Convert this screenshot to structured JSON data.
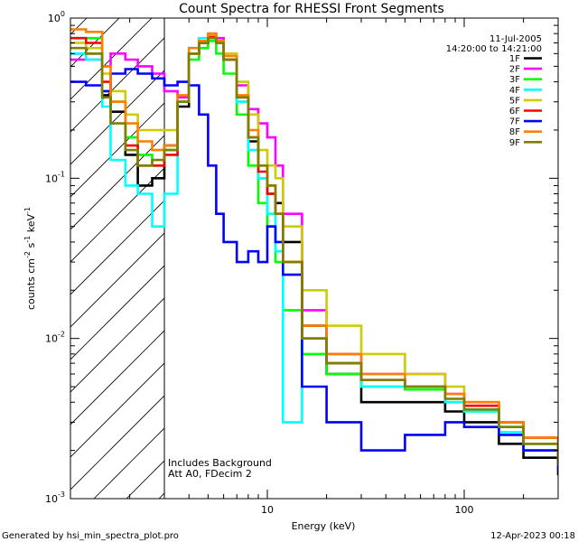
{
  "chart_data": {
    "type": "line",
    "title": "Count Spectra for RHESSI Front Segments",
    "xlabel": "Energy (keV)",
    "ylabel_parts": [
      "counts cm",
      "-2",
      " s",
      "-1",
      " keV",
      "-1"
    ],
    "xscale": "log",
    "yscale": "log",
    "xlim": [
      1,
      300
    ],
    "ylim": [
      0.001,
      1
    ],
    "x_ticks": [
      {
        "value": 10,
        "label": "10"
      },
      {
        "value": 100,
        "label": "100"
      }
    ],
    "y_ticks": [
      {
        "value": 1,
        "base": "10",
        "exp": "0"
      },
      {
        "value": 0.1,
        "base": "10",
        "exp": "-1"
      },
      {
        "value": 0.01,
        "base": "10",
        "exp": "-2"
      },
      {
        "value": 0.001,
        "base": "10",
        "exp": "-3"
      }
    ],
    "date": "11-Jul-2005",
    "time_range": "14:20:00 to 14:21:00",
    "legend_position": "top-right",
    "hatched_region_xmax": 3,
    "annotations": [
      "Includes Background",
      "Att A0, FDecim 2"
    ],
    "series": [
      {
        "name": "1F",
        "color": "#000000",
        "x": [
          1,
          1.2,
          1.45,
          1.6,
          1.9,
          2.2,
          2.6,
          3,
          3.5,
          4,
          4.5,
          5,
          5.5,
          6,
          7,
          8,
          9,
          10,
          11,
          12,
          15,
          20,
          30,
          50,
          80,
          100,
          150,
          200,
          300
        ],
        "y": [
          0.6,
          0.6,
          0.33,
          0.26,
          0.14,
          0.09,
          0.1,
          0.16,
          0.28,
          0.6,
          0.7,
          0.78,
          0.72,
          0.55,
          0.3,
          0.17,
          0.1,
          0.08,
          0.07,
          0.04,
          0.012,
          0.006,
          0.004,
          0.004,
          0.0035,
          0.003,
          0.0022,
          0.0018,
          0.0014
        ]
      },
      {
        "name": "2F",
        "color": "#ff00ff",
        "x": [
          1,
          1.2,
          1.45,
          1.6,
          1.9,
          2.2,
          2.6,
          3,
          3.5,
          4,
          4.5,
          5,
          5.5,
          6,
          7,
          8,
          9,
          10,
          11,
          12,
          15,
          20,
          30,
          50,
          80,
          100,
          150,
          200,
          300
        ],
        "y": [
          0.55,
          0.55,
          0.5,
          0.6,
          0.55,
          0.5,
          0.45,
          0.35,
          0.32,
          0.6,
          0.72,
          0.8,
          0.75,
          0.6,
          0.38,
          0.27,
          0.22,
          0.18,
          0.12,
          0.06,
          0.015,
          0.008,
          0.006,
          0.006,
          0.0045,
          0.0038,
          0.003,
          0.0022,
          0.0017
        ]
      },
      {
        "name": "3F",
        "color": "#00ff00",
        "x": [
          1,
          1.2,
          1.45,
          1.6,
          1.9,
          2.2,
          2.6,
          3,
          3.5,
          4,
          4.5,
          5,
          5.5,
          6,
          7,
          8,
          9,
          10,
          11,
          12,
          15,
          20,
          30,
          50,
          80,
          100,
          150,
          200,
          300
        ],
        "y": [
          0.75,
          0.75,
          0.35,
          0.3,
          0.18,
          0.14,
          0.12,
          0.15,
          0.3,
          0.55,
          0.65,
          0.72,
          0.6,
          0.45,
          0.25,
          0.12,
          0.07,
          0.05,
          0.03,
          0.015,
          0.008,
          0.006,
          0.005,
          0.0048,
          0.004,
          0.0035,
          0.0028,
          0.0022,
          0.0018
        ]
      },
      {
        "name": "4F",
        "color": "#00ffff",
        "x": [
          1,
          1.2,
          1.45,
          1.6,
          1.9,
          2.2,
          2.6,
          3,
          3.5,
          4,
          4.5,
          5,
          5.5,
          6,
          7,
          8,
          9,
          10,
          11,
          12,
          15,
          20,
          30,
          50,
          80,
          100,
          150,
          200,
          300
        ],
        "y": [
          0.6,
          0.55,
          0.28,
          0.13,
          0.09,
          0.08,
          0.05,
          0.08,
          0.3,
          0.65,
          0.75,
          0.8,
          0.7,
          0.55,
          0.3,
          0.15,
          0.1,
          0.06,
          0.035,
          0.003,
          0.01,
          0.007,
          0.005,
          0.005,
          0.004,
          0.0035,
          0.0026,
          0.002,
          0.0015
        ]
      },
      {
        "name": "5F",
        "color": "#cccc00",
        "x": [
          1,
          1.2,
          1.45,
          1.6,
          1.9,
          2.2,
          2.6,
          3,
          3.5,
          4,
          4.5,
          5,
          5.5,
          6,
          7,
          8,
          9,
          10,
          11,
          12,
          15,
          20,
          30,
          50,
          80,
          100,
          150,
          200,
          300
        ],
        "y": [
          0.7,
          0.65,
          0.45,
          0.35,
          0.25,
          0.2,
          0.2,
          0.2,
          0.3,
          0.6,
          0.72,
          0.78,
          0.72,
          0.6,
          0.4,
          0.25,
          0.15,
          0.12,
          0.1,
          0.05,
          0.02,
          0.012,
          0.008,
          0.006,
          0.005,
          0.004,
          0.003,
          0.0022,
          0.0018
        ]
      },
      {
        "name": "6F",
        "color": "#ff0000",
        "x": [
          1,
          1.2,
          1.45,
          1.6,
          1.9,
          2.2,
          2.6,
          3,
          3.5,
          4,
          4.5,
          5,
          5.5,
          6,
          7,
          8,
          9,
          10,
          11,
          12,
          15,
          20,
          30,
          50,
          80,
          100,
          150,
          200,
          300
        ],
        "y": [
          0.75,
          0.7,
          0.4,
          0.3,
          0.16,
          0.12,
          0.12,
          0.14,
          0.3,
          0.6,
          0.7,
          0.76,
          0.7,
          0.55,
          0.32,
          0.18,
          0.11,
          0.08,
          0.06,
          0.03,
          0.01,
          0.007,
          0.0055,
          0.005,
          0.0045,
          0.0038,
          0.003,
          0.0024,
          0.0018
        ]
      },
      {
        "name": "7F",
        "color": "#0000ff",
        "x": [
          1,
          1.2,
          1.45,
          1.6,
          1.9,
          2.2,
          2.6,
          3,
          3.5,
          4,
          4.5,
          5,
          5.5,
          6,
          7,
          8,
          9,
          10,
          11,
          12,
          15,
          20,
          30,
          50,
          80,
          100,
          150,
          200,
          300
        ],
        "y": [
          0.4,
          0.38,
          0.35,
          0.45,
          0.48,
          0.45,
          0.42,
          0.38,
          0.4,
          0.38,
          0.25,
          0.12,
          0.06,
          0.04,
          0.03,
          0.035,
          0.03,
          0.05,
          0.04,
          0.025,
          0.005,
          0.003,
          0.002,
          0.0025,
          0.003,
          0.0028,
          0.0025,
          0.002,
          0.0015
        ]
      },
      {
        "name": "8F",
        "color": "#ff7f00",
        "x": [
          1,
          1.2,
          1.45,
          1.6,
          1.9,
          2.2,
          2.6,
          3,
          3.5,
          4,
          4.5,
          5,
          5.5,
          6,
          7,
          8,
          9,
          10,
          11,
          12,
          15,
          20,
          30,
          50,
          80,
          100,
          150,
          200,
          300
        ],
        "y": [
          0.85,
          0.82,
          0.5,
          0.3,
          0.22,
          0.17,
          0.15,
          0.16,
          0.33,
          0.65,
          0.72,
          0.8,
          0.72,
          0.58,
          0.33,
          0.2,
          0.12,
          0.09,
          0.06,
          0.03,
          0.012,
          0.008,
          0.006,
          0.005,
          0.0045,
          0.004,
          0.003,
          0.0024,
          0.0018
        ]
      },
      {
        "name": "9F",
        "color": "#7f7f00",
        "x": [
          1,
          1.2,
          1.45,
          1.6,
          1.9,
          2.2,
          2.6,
          3,
          3.5,
          4,
          4.5,
          5,
          5.5,
          6,
          7,
          8,
          9,
          10,
          11,
          12,
          15,
          20,
          30,
          50,
          80,
          100,
          150,
          200,
          300
        ],
        "y": [
          0.65,
          0.6,
          0.32,
          0.22,
          0.15,
          0.12,
          0.13,
          0.15,
          0.3,
          0.6,
          0.7,
          0.75,
          0.7,
          0.55,
          0.32,
          0.18,
          0.12,
          0.09,
          0.06,
          0.03,
          0.01,
          0.007,
          0.0055,
          0.005,
          0.0042,
          0.0036,
          0.0028,
          0.0022,
          0.0016
        ]
      }
    ]
  },
  "footer": {
    "left": "Generated by hsi_min_spectra_plot.pro",
    "right": "12-Apr-2023 00:18"
  }
}
